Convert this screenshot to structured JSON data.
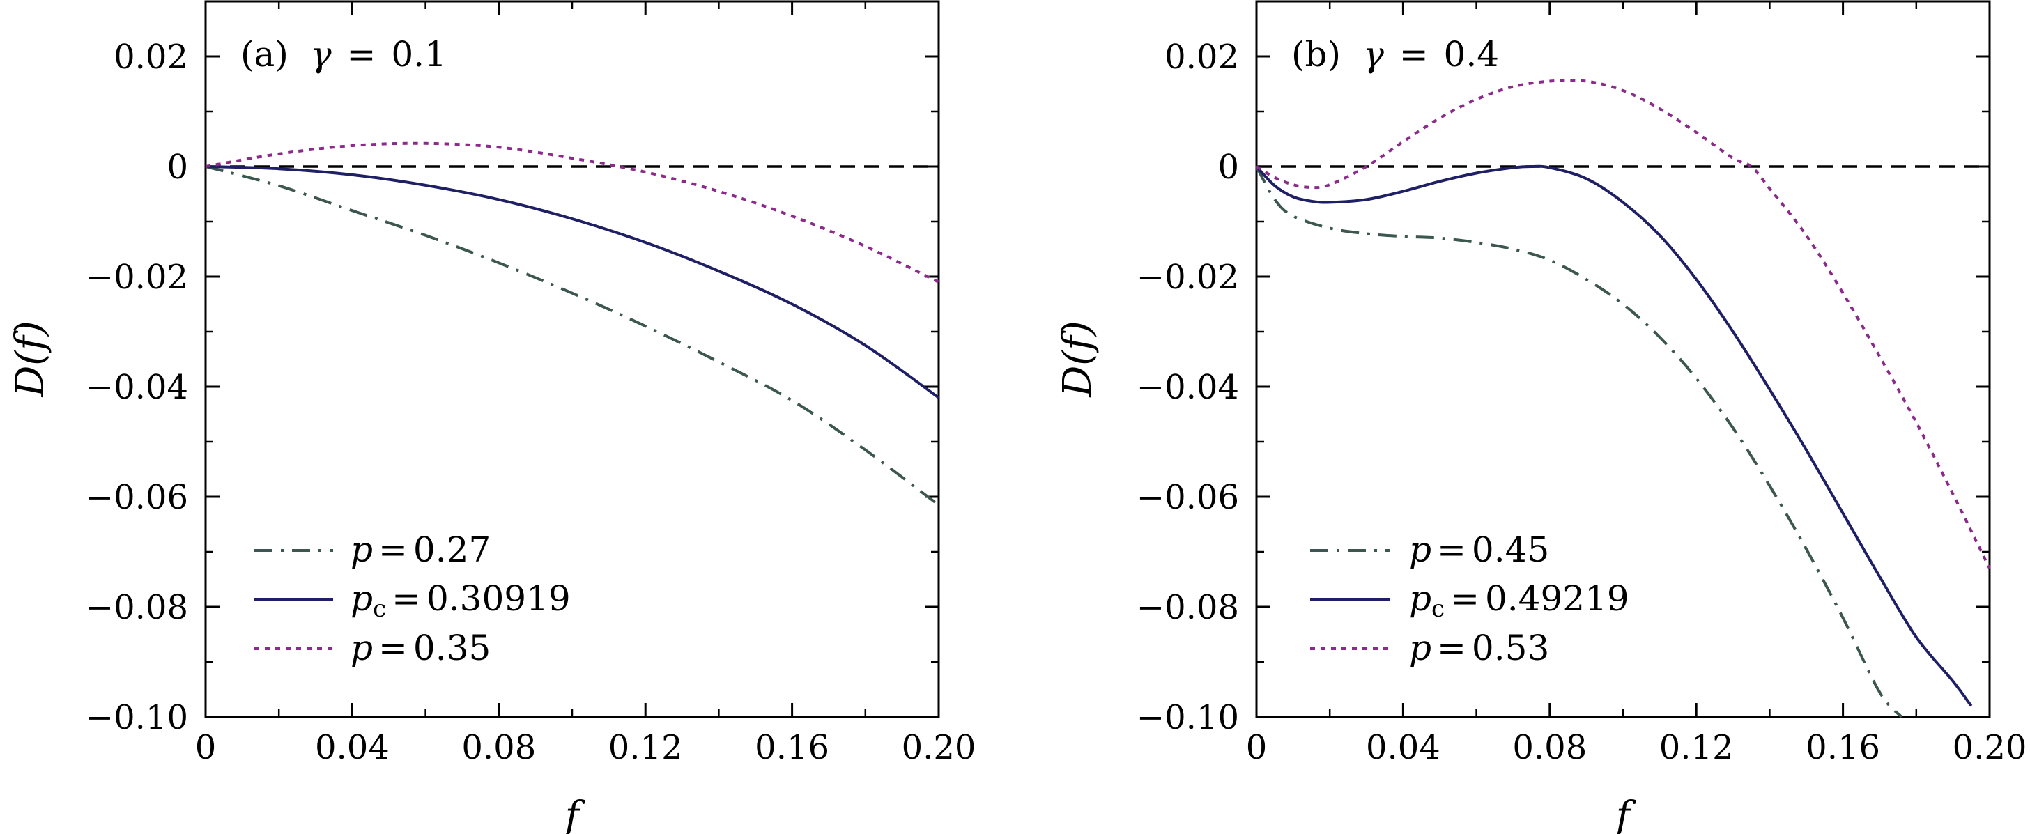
{
  "chart_data": [
    {
      "type": "line",
      "panel_label": "(a)",
      "title_var": "γ",
      "title_eq": "=",
      "title_val": "0.1",
      "xlabel": "f",
      "ylabel": "D(f)",
      "xlim": [
        0,
        0.2
      ],
      "ylim": [
        -0.1,
        0.03
      ],
      "xticks": [
        0,
        0.04,
        0.08,
        0.12,
        0.16,
        0.2
      ],
      "xtick_labels": [
        "0",
        "0.04",
        "0.08",
        "0.12",
        "0.16",
        "0.20"
      ],
      "yticks": [
        0.02,
        0,
        -0.02,
        -0.04,
        -0.06,
        -0.08,
        -0.1
      ],
      "ytick_labels": [
        "0.02",
        "0",
        "−0.02",
        "−0.04",
        "−0.06",
        "−0.08",
        "−0.10"
      ],
      "reference_line": 0,
      "legend_position": "bottom-left",
      "series": [
        {
          "name": "p = 0.27",
          "var": "p",
          "sub": "",
          "eq": "=",
          "val": "0.27",
          "style": "dashdot",
          "color": "#3b5750",
          "x": [
            0,
            0.02,
            0.04,
            0.06,
            0.08,
            0.1,
            0.12,
            0.14,
            0.16,
            0.18,
            0.2
          ],
          "y": [
            0,
            -0.0035,
            -0.008,
            -0.0125,
            -0.0175,
            -0.023,
            -0.029,
            -0.0355,
            -0.0425,
            -0.0515,
            -0.0615
          ]
        },
        {
          "name": "p_c = 0.30919",
          "var": "p",
          "sub": "c",
          "eq": "=",
          "val": "0.30919",
          "style": "solid",
          "color": "#1f1f66",
          "x": [
            0,
            0.02,
            0.04,
            0.06,
            0.08,
            0.1,
            0.12,
            0.14,
            0.16,
            0.18,
            0.2
          ],
          "y": [
            0,
            -0.0004,
            -0.0015,
            -0.0034,
            -0.006,
            -0.0095,
            -0.0138,
            -0.019,
            -0.025,
            -0.0325,
            -0.042
          ]
        },
        {
          "name": "p = 0.35",
          "var": "p",
          "sub": "",
          "eq": "=",
          "val": "0.35",
          "style": "dotted",
          "color": "#8b2a8b",
          "x": [
            0,
            0.02,
            0.04,
            0.06,
            0.08,
            0.1,
            0.12,
            0.14,
            0.16,
            0.18,
            0.2
          ],
          "y": [
            0,
            0.0023,
            0.0038,
            0.0042,
            0.0035,
            0.0015,
            -0.001,
            -0.0045,
            -0.009,
            -0.0145,
            -0.021
          ]
        }
      ]
    },
    {
      "type": "line",
      "panel_label": "(b)",
      "title_var": "γ",
      "title_eq": "=",
      "title_val": "0.4",
      "xlabel": "f",
      "ylabel": "D(f)",
      "xlim": [
        0,
        0.2
      ],
      "ylim": [
        -0.1,
        0.03
      ],
      "xticks": [
        0,
        0.04,
        0.08,
        0.12,
        0.16,
        0.2
      ],
      "xtick_labels": [
        "0",
        "0.04",
        "0.08",
        "0.12",
        "0.16",
        "0.20"
      ],
      "yticks": [
        0.02,
        0,
        -0.02,
        -0.04,
        -0.06,
        -0.08,
        -0.1
      ],
      "ytick_labels": [
        "0.02",
        "0",
        "−0.02",
        "−0.04",
        "−0.06",
        "−0.08",
        "−0.10"
      ],
      "reference_line": 0,
      "legend_position": "bottom-left",
      "series": [
        {
          "name": "p = 0.45",
          "var": "p",
          "sub": "",
          "eq": "=",
          "val": "0.45",
          "style": "dashdot",
          "color": "#3b5750",
          "x": [
            0,
            0.005,
            0.01,
            0.02,
            0.03,
            0.04,
            0.05,
            0.06,
            0.07,
            0.08,
            0.09,
            0.1,
            0.11,
            0.12,
            0.13,
            0.14,
            0.15,
            0.16,
            0.17,
            0.176
          ],
          "y": [
            0,
            -0.006,
            -0.009,
            -0.0112,
            -0.0122,
            -0.0127,
            -0.013,
            -0.0138,
            -0.015,
            -0.017,
            -0.0205,
            -0.025,
            -0.031,
            -0.0385,
            -0.0475,
            -0.058,
            -0.0695,
            -0.082,
            -0.0955,
            -0.1
          ]
        },
        {
          "name": "p_c = 0.49219",
          "var": "p",
          "sub": "c",
          "eq": "=",
          "val": "0.49219",
          "style": "solid",
          "color": "#1f1f66",
          "x": [
            0,
            0.005,
            0.01,
            0.015,
            0.02,
            0.03,
            0.04,
            0.05,
            0.06,
            0.07,
            0.075,
            0.08,
            0.09,
            0.1,
            0.11,
            0.12,
            0.13,
            0.14,
            0.15,
            0.16,
            0.17,
            0.18,
            0.19,
            0.195
          ],
          "y": [
            0,
            -0.0035,
            -0.0055,
            -0.0063,
            -0.0065,
            -0.006,
            -0.0045,
            -0.0027,
            -0.0012,
            -0.0002,
            0,
            -0.0002,
            -0.0022,
            -0.0065,
            -0.0125,
            -0.0205,
            -0.03,
            -0.0405,
            -0.0515,
            -0.063,
            -0.0745,
            -0.0855,
            -0.0935,
            -0.098
          ]
        },
        {
          "name": "p = 0.53",
          "var": "p",
          "sub": "",
          "eq": "=",
          "val": "0.53",
          "style": "dotted",
          "color": "#8b2a8b",
          "x": [
            0,
            0.005,
            0.01,
            0.015,
            0.02,
            0.03,
            0.04,
            0.05,
            0.06,
            0.07,
            0.08,
            0.09,
            0.1,
            0.11,
            0.12,
            0.13,
            0.135,
            0.14,
            0.15,
            0.16,
            0.17,
            0.18,
            0.19,
            0.2
          ],
          "y": [
            0,
            -0.002,
            -0.0033,
            -0.0038,
            -0.0033,
            0,
            0.0045,
            0.0088,
            0.0122,
            0.0145,
            0.0155,
            0.0155,
            0.0138,
            0.0105,
            0.0062,
            0.0015,
            0,
            -0.004,
            -0.0125,
            -0.023,
            -0.0345,
            -0.0465,
            -0.0595,
            -0.073
          ]
        }
      ]
    }
  ]
}
